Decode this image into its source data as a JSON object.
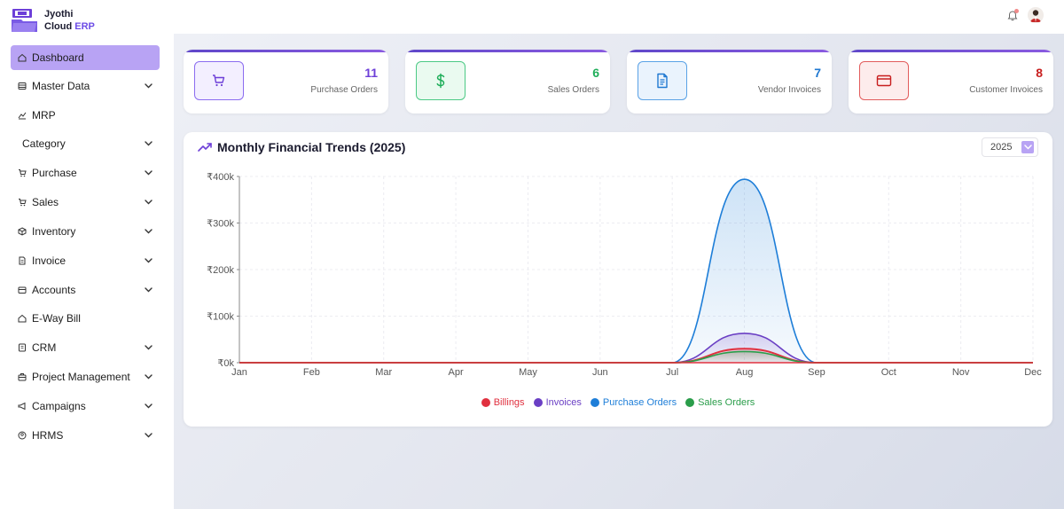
{
  "app": {
    "logo_line1": "Jyothi",
    "logo_line2": "Cloud",
    "logo_line3": "ERP"
  },
  "header": {
    "bell_icon": "bell-icon",
    "avatar": "user-avatar"
  },
  "sidebar": {
    "items": [
      {
        "label": "Dashboard",
        "icon": "home-icon",
        "active": true,
        "expandable": false
      },
      {
        "label": "Master Data",
        "icon": "database-icon",
        "expandable": true
      },
      {
        "label": "MRP",
        "icon": "chart-icon",
        "expandable": false
      },
      {
        "label": "Category",
        "icon": "",
        "expandable": true
      },
      {
        "label": "Purchase",
        "icon": "cart-icon",
        "expandable": true
      },
      {
        "label": "Sales",
        "icon": "cart-icon",
        "expandable": true
      },
      {
        "label": "Inventory",
        "icon": "box-icon",
        "expandable": true
      },
      {
        "label": "Invoice",
        "icon": "document-icon",
        "expandable": true
      },
      {
        "label": "Accounts",
        "icon": "wallet-icon",
        "expandable": true
      },
      {
        "label": "E-Way Bill",
        "icon": "home-icon",
        "expandable": false
      },
      {
        "label": "CRM",
        "icon": "contacts-icon",
        "expandable": true
      },
      {
        "label": "Project Management",
        "icon": "briefcase-icon",
        "expandable": true
      },
      {
        "label": "Campaigns",
        "icon": "megaphone-icon",
        "expandable": true
      },
      {
        "label": "HRMS",
        "icon": "user-circle-icon",
        "expandable": true
      }
    ]
  },
  "cards": [
    {
      "value": "11",
      "label": "Purchase Orders",
      "icon": "cart-icon",
      "color": "#6d3fd8",
      "bg": "#f3efff",
      "border": "#8b6cf0"
    },
    {
      "value": "6",
      "label": "Sales Orders",
      "icon": "dollar-icon",
      "color": "#1fae5a",
      "bg": "#eafaf0",
      "border": "#4cc985"
    },
    {
      "value": "7",
      "label": "Vendor Invoices",
      "icon": "document-icon",
      "color": "#1f78d1",
      "bg": "#eaf3fd",
      "border": "#5aa2e6"
    },
    {
      "value": "8",
      "label": "Customer Invoices",
      "icon": "credit-card-icon",
      "color": "#c81e1e",
      "bg": "#fdecec",
      "border": "#e25c5c"
    }
  ],
  "chart": {
    "title": "Monthly Financial Trends (2025)",
    "year": "2025",
    "trend_icon": "trending-up-icon",
    "dropdown_icon": "chevron-down-icon"
  },
  "chart_data": {
    "type": "area",
    "categories": [
      "Jan",
      "Feb",
      "Mar",
      "Apr",
      "May",
      "Jun",
      "Jul",
      "Aug",
      "Sep",
      "Oct",
      "Nov",
      "Dec"
    ],
    "yticks": [
      "₹0k",
      "₹100k",
      "₹200k",
      "₹300k",
      "₹400k"
    ],
    "ylim": [
      0,
      400000
    ],
    "grid": true,
    "legend_position": "bottom",
    "series": [
      {
        "name": "Billings",
        "color": "#e0303f",
        "values": [
          0,
          0,
          0,
          0,
          0,
          0,
          0,
          30000,
          0,
          0,
          0,
          0
        ]
      },
      {
        "name": "Invoices",
        "color": "#6a3fc4",
        "values": [
          0,
          0,
          0,
          0,
          0,
          0,
          0,
          63000,
          0,
          0,
          0,
          0
        ]
      },
      {
        "name": "Purchase Orders",
        "color": "#1e7ed8",
        "values": [
          0,
          0,
          0,
          0,
          0,
          0,
          0,
          394000,
          0,
          0,
          0,
          0
        ]
      },
      {
        "name": "Sales Orders",
        "color": "#2a9d4a",
        "values": [
          0,
          0,
          0,
          0,
          0,
          0,
          0,
          24000,
          0,
          0,
          0,
          0
        ]
      }
    ]
  }
}
